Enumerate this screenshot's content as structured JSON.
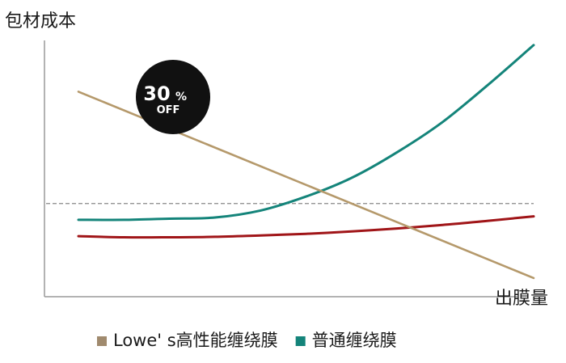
{
  "chart_data": {
    "type": "line",
    "ylabel": "包材成本",
    "xlabel": "出膜量",
    "x": [
      0,
      10,
      20,
      30,
      40,
      50,
      60,
      70,
      80,
      90,
      100
    ],
    "series": [
      {
        "name": "Lowe' s高性能缠绕膜",
        "color": "#b5996b",
        "values": [
          88,
          80,
          72,
          64,
          56,
          48,
          40,
          32,
          24,
          16,
          8
        ]
      },
      {
        "name": "普通缠绕膜",
        "color": "#14847a",
        "values": [
          33,
          33,
          33.5,
          34,
          37,
          43,
          51,
          62,
          75,
          91,
          108
        ]
      },
      {
        "color": "#a01518",
        "values": [
          26,
          25.5,
          25.5,
          25.7,
          26.3,
          27,
          28,
          29.3,
          30.8,
          32.6,
          34.5
        ]
      }
    ],
    "reference_line": {
      "y": 40,
      "style": "dashed",
      "color": "#888888"
    },
    "badge": {
      "line1": "30",
      "pct": "%",
      "line2": "OFF",
      "color": "#111111"
    },
    "ylim": [
      0,
      110
    ],
    "grid": false,
    "legend": "bottom"
  }
}
